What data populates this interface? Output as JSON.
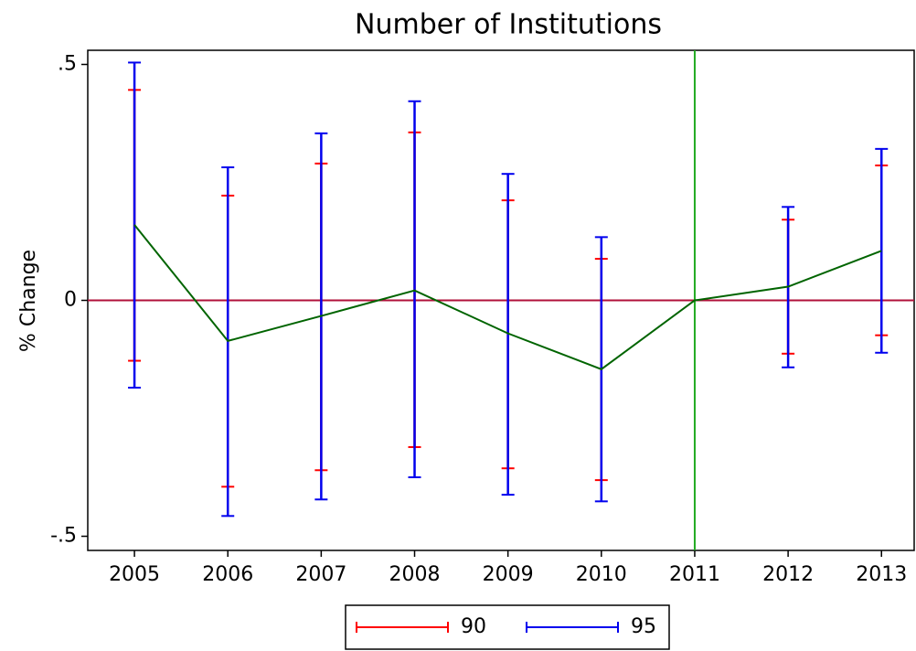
{
  "chart_data": {
    "type": "line",
    "title": "Number of Institutions",
    "ylabel": "% Change",
    "x": [
      2005,
      2006,
      2007,
      2008,
      2009,
      2010,
      2011,
      2012,
      2013
    ],
    "xlim": [
      2004.5,
      2013.35
    ],
    "ylim": [
      -0.53,
      0.53
    ],
    "xticks": [
      2005,
      2006,
      2007,
      2008,
      2009,
      2010,
      2011,
      2012,
      2013
    ],
    "yticks": [
      {
        "value": 0.5,
        "label": ".5"
      },
      0,
      {
        "value": -0.5,
        "label": "-.5"
      }
    ],
    "hline": 0,
    "hline_color": "#b0103a",
    "vline": 2011,
    "vline_color": "#22aa22",
    "line": {
      "color": "#006400",
      "values": [
        0.16,
        -0.086,
        -0.033,
        0.021,
        -0.07,
        -0.146,
        0,
        0.029,
        0.105
      ]
    },
    "intervals": [
      {
        "name": "90",
        "color": "#ff0000",
        "lower": [
          -0.128,
          -0.395,
          -0.36,
          -0.311,
          -0.356,
          -0.381,
          null,
          -0.113,
          -0.074
        ],
        "upper": [
          0.446,
          0.222,
          0.29,
          0.356,
          0.212,
          0.088,
          null,
          0.171,
          0.286
        ]
      },
      {
        "name": "95",
        "color": "#0000ee",
        "lower": [
          -0.185,
          -0.457,
          -0.422,
          -0.375,
          -0.412,
          -0.426,
          null,
          -0.142,
          -0.111
        ],
        "upper": [
          0.504,
          0.282,
          0.354,
          0.422,
          0.268,
          0.134,
          null,
          0.198,
          0.321
        ]
      }
    ],
    "legend": "bottom"
  }
}
